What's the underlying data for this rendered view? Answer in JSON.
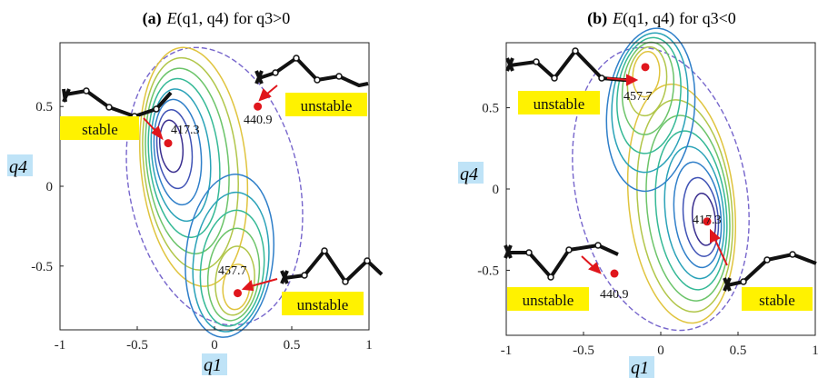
{
  "chart_data": [
    {
      "type": "contour",
      "title_prefix": "(a)",
      "title_func": "E",
      "title_vars": "(q1, q4)",
      "title_cond": "for q3>0",
      "xlabel": "q1",
      "ylabel": "q4",
      "xlim": [
        -1,
        1
      ],
      "ylim": [
        -0.9,
        0.9
      ],
      "xticks": [
        "-1",
        "-0.5",
        "0",
        "0.5",
        "1"
      ],
      "yticks": [
        "0.5",
        "0",
        "-0.5"
      ],
      "extrema": [
        {
          "label": "417.3",
          "x": -0.3,
          "y": 0.27,
          "tag": "stable"
        },
        {
          "label": "440.9",
          "x": 0.28,
          "y": 0.5,
          "tag": "unstable"
        },
        {
          "label": "457.7",
          "x": 0.15,
          "y": -0.67,
          "tag": "unstable"
        }
      ]
    },
    {
      "type": "contour",
      "title_prefix": "(b)",
      "title_func": "E",
      "title_vars": "(q1, q4)",
      "title_cond": "for q3<0",
      "xlabel": "q1",
      "ylabel": "q4",
      "xlim": [
        -1,
        1
      ],
      "ylim": [
        -0.9,
        0.9
      ],
      "xticks": [
        "-1",
        "-0.5",
        "0",
        "0.5",
        "1"
      ],
      "yticks": [
        "0.5",
        "0",
        "-0.5"
      ],
      "extrema": [
        {
          "label": "457.7",
          "x": -0.1,
          "y": 0.75,
          "tag": "unstable"
        },
        {
          "label": "417.3",
          "x": 0.3,
          "y": -0.2,
          "tag": "stable"
        },
        {
          "label": "440.9",
          "x": -0.3,
          "y": -0.52,
          "tag": "unstable"
        }
      ]
    }
  ],
  "colors": {
    "contour_ramp": [
      "#3b2f8f",
      "#3f52b5",
      "#2f7fc9",
      "#2aa2b8",
      "#35b996",
      "#6cc46a",
      "#b1c64a",
      "#e0c43e"
    ],
    "marker": "#e0161c",
    "tag_bg": "#fff200",
    "label_bg": "#bfe3f7",
    "boundary": "#7766cc"
  }
}
